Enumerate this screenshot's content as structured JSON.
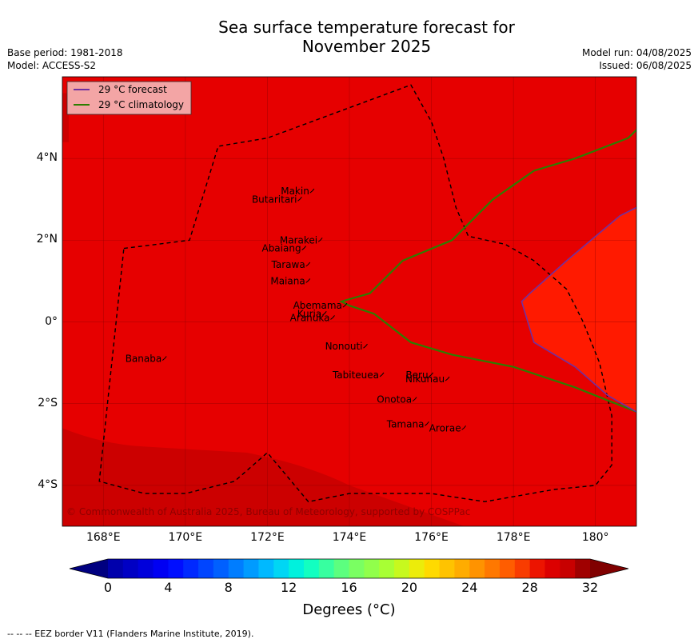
{
  "title_line1": "Sea surface temperature forecast for",
  "title_line2": "November 2025",
  "meta_left": {
    "base_period": "Base period: 1981-2018",
    "model": "Model: ACCESS-S2"
  },
  "meta_right": {
    "model_run": "Model run: 04/08/2025",
    "issued": "Issued: 06/08/2025"
  },
  "legend": {
    "forecast": {
      "label": "29 °C  forecast",
      "color": "#7030a0"
    },
    "climatology": {
      "label": "29 °C  climatology",
      "color": "#2e7d00"
    }
  },
  "map_extent": {
    "lon_min": 167.0,
    "lon_max": 181.0,
    "lat_min": -5.0,
    "lat_max": 6.0
  },
  "axes": {
    "y_ticks": [
      {
        "lat": 4,
        "label": "4°N"
      },
      {
        "lat": 2,
        "label": "2°N"
      },
      {
        "lat": 0,
        "label": "0°"
      },
      {
        "lat": -2,
        "label": "2°S"
      },
      {
        "lat": -4,
        "label": "4°S"
      }
    ],
    "x_ticks": [
      {
        "lon": 168,
        "label": "168°E"
      },
      {
        "lon": 170,
        "label": "170°E"
      },
      {
        "lon": 172,
        "label": "172°E"
      },
      {
        "lon": 174,
        "label": "174°E"
      },
      {
        "lon": 176,
        "label": "176°E"
      },
      {
        "lon": 178,
        "label": "178°E"
      },
      {
        "lon": 180,
        "label": "180°"
      }
    ]
  },
  "islands": [
    {
      "name": "Makin",
      "lon": 173.1,
      "lat": 3.2
    },
    {
      "name": "Butaritari",
      "lon": 172.8,
      "lat": 3.0
    },
    {
      "name": "Marakei",
      "lon": 173.3,
      "lat": 2.0
    },
    {
      "name": "Abaiang",
      "lon": 172.9,
      "lat": 1.8
    },
    {
      "name": "Tarawa",
      "lon": 173.0,
      "lat": 1.4
    },
    {
      "name": "Maiana",
      "lon": 173.0,
      "lat": 1.0
    },
    {
      "name": "Abemama",
      "lon": 173.9,
      "lat": 0.4
    },
    {
      "name": "Kuria",
      "lon": 173.4,
      "lat": 0.2
    },
    {
      "name": "Aranuka",
      "lon": 173.6,
      "lat": 0.1
    },
    {
      "name": "Nonouti",
      "lon": 174.4,
      "lat": -0.6
    },
    {
      "name": "Banaba",
      "lon": 169.5,
      "lat": -0.9
    },
    {
      "name": "Tabiteuea",
      "lon": 174.8,
      "lat": -1.3
    },
    {
      "name": "Beru",
      "lon": 176.0,
      "lat": -1.3
    },
    {
      "name": "Nikunau",
      "lon": 176.4,
      "lat": -1.4
    },
    {
      "name": "Onotoa",
      "lon": 175.6,
      "lat": -1.9
    },
    {
      "name": "Tamana",
      "lon": 175.9,
      "lat": -2.5
    },
    {
      "name": "Arorae",
      "lon": 176.8,
      "lat": -2.6
    }
  ],
  "climatology_29c_line": [
    [
      181.0,
      4.7
    ],
    [
      180.8,
      4.5
    ],
    [
      179.5,
      4.0
    ],
    [
      178.5,
      3.7
    ],
    [
      177.5,
      3.0
    ],
    [
      176.5,
      2.0
    ],
    [
      175.3,
      1.5
    ],
    [
      174.5,
      0.7
    ],
    [
      173.8,
      0.5
    ],
    [
      174.0,
      0.4
    ],
    [
      174.6,
      0.2
    ],
    [
      175.5,
      -0.5
    ],
    [
      176.5,
      -0.8
    ],
    [
      178.0,
      -1.1
    ],
    [
      179.5,
      -1.6
    ],
    [
      180.5,
      -2.0
    ],
    [
      181.0,
      -2.2
    ]
  ],
  "forecast_29c_line": [
    [
      181.0,
      2.8
    ],
    [
      180.6,
      2.6
    ],
    [
      179.3,
      1.5
    ],
    [
      178.4,
      0.7
    ],
    [
      178.2,
      0.5
    ],
    [
      178.5,
      -0.5
    ],
    [
      179.5,
      -1.1
    ],
    [
      180.3,
      -1.8
    ],
    [
      181.0,
      -2.2
    ]
  ],
  "eez_border": [
    [
      168.5,
      1.8
    ],
    [
      170.1,
      2.0
    ],
    [
      170.8,
      4.3
    ],
    [
      172.0,
      4.5
    ],
    [
      175.5,
      5.8
    ],
    [
      176.0,
      4.9
    ],
    [
      176.3,
      4.0
    ],
    [
      176.6,
      2.8
    ],
    [
      176.9,
      2.1
    ],
    [
      177.8,
      1.9
    ],
    [
      178.5,
      1.5
    ],
    [
      179.3,
      0.8
    ],
    [
      179.7,
      0.0
    ],
    [
      180.1,
      -1.0
    ],
    [
      180.4,
      -2.3
    ],
    [
      180.4,
      -3.5
    ],
    [
      180.0,
      -4.0
    ],
    [
      179.0,
      -4.1
    ],
    [
      177.3,
      -4.4
    ],
    [
      176.0,
      -4.2
    ],
    [
      175.0,
      -4.2
    ],
    [
      174.0,
      -4.2
    ],
    [
      173.0,
      -4.4
    ],
    [
      172.0,
      -3.2
    ],
    [
      171.2,
      -3.9
    ],
    [
      170.0,
      -4.2
    ],
    [
      169.0,
      -4.2
    ],
    [
      167.9,
      -3.9
    ],
    [
      168.5,
      1.8
    ]
  ],
  "colorbar": {
    "min": 0,
    "max": 32,
    "step": 1,
    "tick_labels": [
      "0",
      "4",
      "8",
      "12",
      "16",
      "20",
      "24",
      "28",
      "32"
    ],
    "label": "Degrees (°C)",
    "under_color": "#000080",
    "over_color": "#800000"
  },
  "copyright": "© Commonwealth of Australia 2025, Bureau of Meteorology, supported by COSPPac",
  "footnote": "--  --  -- EEZ border V11 (Flanders Marine Institute, 2019)."
}
